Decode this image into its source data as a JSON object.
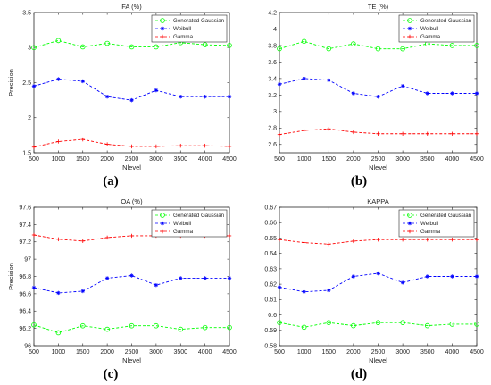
{
  "chart_data": [
    {
      "type": "line",
      "title": "FA (%)",
      "caption": "(a)",
      "xlabel": "Nlevel",
      "ylabel": "Precision",
      "x": [
        500,
        1000,
        1500,
        2000,
        2500,
        3000,
        3500,
        4000,
        4500
      ],
      "xlim": [
        500,
        4500
      ],
      "ylim": [
        1.5,
        3.5
      ],
      "yticks": [
        "1.5",
        "2",
        "2.5",
        "3",
        "3.5"
      ],
      "legend_position": "top-right",
      "series": [
        {
          "name": "Generated Gaussian",
          "color": "#00ff00",
          "marker": "circle",
          "values": [
            3.0,
            3.1,
            3.01,
            3.06,
            3.01,
            3.01,
            3.07,
            3.04,
            3.03
          ]
        },
        {
          "name": "Weibull",
          "color": "#0000ff",
          "marker": "star",
          "values": [
            2.45,
            2.55,
            2.52,
            2.3,
            2.25,
            2.39,
            2.3,
            2.3,
            2.3
          ]
        },
        {
          "name": "Gamma",
          "color": "#ff0000",
          "marker": "plus",
          "values": [
            1.58,
            1.66,
            1.69,
            1.62,
            1.59,
            1.59,
            1.6,
            1.6,
            1.59
          ]
        }
      ]
    },
    {
      "type": "line",
      "title": "TE (%)",
      "caption": "(b)",
      "xlabel": "Nlevel",
      "ylabel": "",
      "x": [
        500,
        1000,
        1500,
        2000,
        2500,
        3000,
        3500,
        4000,
        4500
      ],
      "xlim": [
        500,
        4500
      ],
      "ylim": [
        2.5,
        4.2
      ],
      "yticks": [
        "2.6",
        "2.8",
        "3",
        "3.2",
        "3.4",
        "3.6",
        "3.8",
        "4",
        "4.2"
      ],
      "legend_position": "top-right",
      "series": [
        {
          "name": "Generated Gaussian",
          "color": "#00ff00",
          "marker": "circle",
          "values": [
            3.76,
            3.85,
            3.76,
            3.82,
            3.76,
            3.76,
            3.82,
            3.8,
            3.8
          ]
        },
        {
          "name": "Weibull",
          "color": "#0000ff",
          "marker": "star",
          "values": [
            3.33,
            3.4,
            3.38,
            3.22,
            3.18,
            3.31,
            3.22,
            3.22,
            3.22
          ]
        },
        {
          "name": "Gamma",
          "color": "#ff0000",
          "marker": "plus",
          "values": [
            2.72,
            2.77,
            2.79,
            2.75,
            2.73,
            2.73,
            2.73,
            2.73,
            2.73
          ]
        }
      ]
    },
    {
      "type": "line",
      "title": "OA (%)",
      "caption": "(c)",
      "xlabel": "Nlevel",
      "ylabel": "Precision",
      "x": [
        500,
        1000,
        1500,
        2000,
        2500,
        3000,
        3500,
        4000,
        4500
      ],
      "xlim": [
        500,
        4500
      ],
      "ylim": [
        96.0,
        97.6
      ],
      "yticks": [
        "96",
        "96.2",
        "96.4",
        "96.6",
        "96.8",
        "97",
        "97.2",
        "97.4",
        "97.6"
      ],
      "legend_position": "top-right",
      "series": [
        {
          "name": "Generated Gaussian",
          "color": "#00ff00",
          "marker": "circle",
          "values": [
            96.24,
            96.15,
            96.23,
            96.19,
            96.23,
            96.23,
            96.19,
            96.21,
            96.21
          ]
        },
        {
          "name": "Weibull",
          "color": "#0000ff",
          "marker": "star",
          "values": [
            96.67,
            96.61,
            96.63,
            96.78,
            96.81,
            96.7,
            96.78,
            96.78,
            96.78
          ]
        },
        {
          "name": "Gamma",
          "color": "#ff0000",
          "marker": "plus",
          "values": [
            97.28,
            97.23,
            97.21,
            97.25,
            97.27,
            97.27,
            97.27,
            97.27,
            97.27
          ]
        }
      ]
    },
    {
      "type": "line",
      "title": "KAPPA",
      "caption": "(d)",
      "xlabel": "Nlevel",
      "ylabel": "",
      "x": [
        500,
        1000,
        1500,
        2000,
        2500,
        3000,
        3500,
        4000,
        4500
      ],
      "xlim": [
        500,
        4500
      ],
      "ylim": [
        0.58,
        0.67
      ],
      "yticks": [
        "0.58",
        "0.59",
        "0.6",
        "0.61",
        "0.62",
        "0.63",
        "0.64",
        "0.65",
        "0.66",
        "0.67"
      ],
      "legend_position": "top-right",
      "series": [
        {
          "name": "Generated Gaussian",
          "color": "#00ff00",
          "marker": "circle",
          "values": [
            0.595,
            0.592,
            0.595,
            0.593,
            0.595,
            0.595,
            0.593,
            0.594,
            0.594
          ]
        },
        {
          "name": "Weibull",
          "color": "#0000ff",
          "marker": "star",
          "values": [
            0.618,
            0.615,
            0.616,
            0.625,
            0.627,
            0.621,
            0.625,
            0.625,
            0.625
          ]
        },
        {
          "name": "Gamma",
          "color": "#ff0000",
          "marker": "plus",
          "values": [
            0.649,
            0.647,
            0.646,
            0.648,
            0.649,
            0.649,
            0.649,
            0.649,
            0.649
          ]
        }
      ]
    }
  ]
}
